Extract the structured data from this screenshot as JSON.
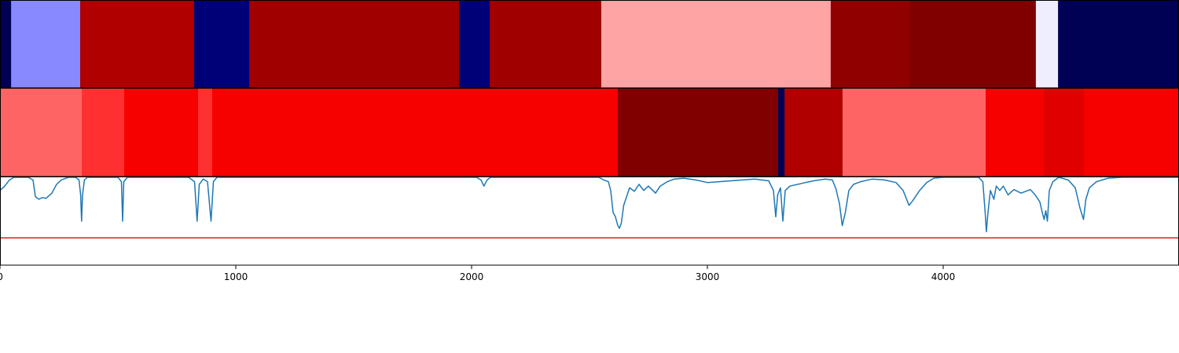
{
  "chart_data": {
    "type": "heatmap",
    "xlim": [
      0,
      5000
    ],
    "x_ticks": [
      {
        "value": 0,
        "label": "0"
      },
      {
        "value": 1000,
        "label": "1000"
      },
      {
        "value": 2000,
        "label": "2000"
      },
      {
        "value": 3000,
        "label": "3000"
      },
      {
        "value": 4000,
        "label": "4000"
      }
    ],
    "strip_top": {
      "segments": [
        {
          "start": 0,
          "end": 47,
          "color": "#000055"
        },
        {
          "start": 47,
          "end": 340,
          "color": "#8888ff"
        },
        {
          "start": 340,
          "end": 823,
          "color": "#b00000"
        },
        {
          "start": 823,
          "end": 1057,
          "color": "#000077"
        },
        {
          "start": 1057,
          "end": 1947,
          "color": "#a00000"
        },
        {
          "start": 1947,
          "end": 2077,
          "color": "#000077"
        },
        {
          "start": 2077,
          "end": 2550,
          "color": "#a00000"
        },
        {
          "start": 2550,
          "end": 3523,
          "color": "#ffa4a4"
        },
        {
          "start": 3523,
          "end": 3857,
          "color": "#900000"
        },
        {
          "start": 3857,
          "end": 4393,
          "color": "#800000"
        },
        {
          "start": 4393,
          "end": 4487,
          "color": "#eeeeff"
        },
        {
          "start": 4487,
          "end": 5000,
          "color": "#000055"
        }
      ]
    },
    "strip_mid": {
      "segments": [
        {
          "start": 0,
          "end": 347,
          "color": "#ff6464"
        },
        {
          "start": 347,
          "end": 527,
          "color": "#ff3030"
        },
        {
          "start": 527,
          "end": 840,
          "color": "#f70000"
        },
        {
          "start": 840,
          "end": 900,
          "color": "#ff3030"
        },
        {
          "start": 900,
          "end": 2620,
          "color": "#f70000"
        },
        {
          "start": 2620,
          "end": 3300,
          "color": "#800000"
        },
        {
          "start": 3300,
          "end": 3327,
          "color": "#000055"
        },
        {
          "start": 3327,
          "end": 3573,
          "color": "#b00000"
        },
        {
          "start": 3573,
          "end": 4180,
          "color": "#ff6464"
        },
        {
          "start": 4180,
          "end": 4427,
          "color": "#f70000"
        },
        {
          "start": 4427,
          "end": 4597,
          "color": "#e00000"
        },
        {
          "start": 4597,
          "end": 5000,
          "color": "#f70000"
        }
      ]
    },
    "line_panel": {
      "ylim": [
        0,
        1
      ],
      "line_color": "#1f77b4",
      "threshold": 0.31,
      "threshold_color": "#e41a1c",
      "series": [
        [
          0,
          0.85
        ],
        [
          20,
          0.9
        ],
        [
          40,
          0.97
        ],
        [
          60,
          1
        ],
        [
          120,
          1
        ],
        [
          140,
          0.97
        ],
        [
          150,
          0.78
        ],
        [
          165,
          0.75
        ],
        [
          180,
          0.77
        ],
        [
          195,
          0.76
        ],
        [
          220,
          0.82
        ],
        [
          240,
          0.92
        ],
        [
          260,
          0.97
        ],
        [
          290,
          1
        ],
        [
          320,
          1
        ],
        [
          335,
          0.97
        ],
        [
          342,
          0.8
        ],
        [
          346,
          0.5
        ],
        [
          350,
          0.8
        ],
        [
          358,
          0.97
        ],
        [
          370,
          1
        ],
        [
          500,
          1
        ],
        [
          515,
          0.95
        ],
        [
          520,
          0.5
        ],
        [
          525,
          0.95
        ],
        [
          540,
          1
        ],
        [
          800,
          1
        ],
        [
          825,
          0.95
        ],
        [
          836,
          0.5
        ],
        [
          845,
          0.92
        ],
        [
          862,
          0.98
        ],
        [
          880,
          0.95
        ],
        [
          895,
          0.5
        ],
        [
          905,
          0.95
        ],
        [
          920,
          1
        ],
        [
          2020,
          1
        ],
        [
          2040,
          0.97
        ],
        [
          2052,
          0.9
        ],
        [
          2066,
          0.97
        ],
        [
          2080,
          1
        ],
        [
          2540,
          1
        ],
        [
          2560,
          0.97
        ],
        [
          2580,
          0.95
        ],
        [
          2590,
          0.85
        ],
        [
          2600,
          0.6
        ],
        [
          2610,
          0.55
        ],
        [
          2620,
          0.45
        ],
        [
          2627,
          0.42
        ],
        [
          2635,
          0.48
        ],
        [
          2645,
          0.68
        ],
        [
          2660,
          0.8
        ],
        [
          2670,
          0.88
        ],
        [
          2690,
          0.84
        ],
        [
          2710,
          0.92
        ],
        [
          2730,
          0.85
        ],
        [
          2750,
          0.9
        ],
        [
          2780,
          0.82
        ],
        [
          2800,
          0.9
        ],
        [
          2830,
          0.95
        ],
        [
          2860,
          0.98
        ],
        [
          2900,
          0.99
        ],
        [
          2950,
          0.97
        ],
        [
          3000,
          0.94
        ],
        [
          3050,
          0.95
        ],
        [
          3100,
          0.96
        ],
        [
          3150,
          0.97
        ],
        [
          3200,
          0.98
        ],
        [
          3260,
          0.96
        ],
        [
          3280,
          0.85
        ],
        [
          3290,
          0.55
        ],
        [
          3298,
          0.8
        ],
        [
          3310,
          0.88
        ],
        [
          3320,
          0.5
        ],
        [
          3330,
          0.85
        ],
        [
          3350,
          0.9
        ],
        [
          3400,
          0.93
        ],
        [
          3450,
          0.96
        ],
        [
          3500,
          0.98
        ],
        [
          3530,
          0.97
        ],
        [
          3545,
          0.87
        ],
        [
          3560,
          0.7
        ],
        [
          3572,
          0.45
        ],
        [
          3585,
          0.6
        ],
        [
          3600,
          0.85
        ],
        [
          3620,
          0.92
        ],
        [
          3650,
          0.95
        ],
        [
          3700,
          0.98
        ],
        [
          3750,
          0.97
        ],
        [
          3800,
          0.94
        ],
        [
          3830,
          0.85
        ],
        [
          3855,
          0.68
        ],
        [
          3870,
          0.73
        ],
        [
          3900,
          0.85
        ],
        [
          3930,
          0.94
        ],
        [
          3960,
          0.99
        ],
        [
          4000,
          1
        ],
        [
          4150,
          1
        ],
        [
          4168,
          0.95
        ],
        [
          4178,
          0.6
        ],
        [
          4183,
          0.38
        ],
        [
          4190,
          0.6
        ],
        [
          4200,
          0.85
        ],
        [
          4215,
          0.75
        ],
        [
          4225,
          0.9
        ],
        [
          4240,
          0.85
        ],
        [
          4255,
          0.9
        ],
        [
          4275,
          0.8
        ],
        [
          4300,
          0.86
        ],
        [
          4330,
          0.82
        ],
        [
          4370,
          0.86
        ],
        [
          4390,
          0.8
        ],
        [
          4410,
          0.72
        ],
        [
          4420,
          0.6
        ],
        [
          4428,
          0.52
        ],
        [
          4435,
          0.62
        ],
        [
          4442,
          0.5
        ],
        [
          4450,
          0.85
        ],
        [
          4465,
          0.95
        ],
        [
          4490,
          1
        ],
        [
          4530,
          0.97
        ],
        [
          4560,
          0.88
        ],
        [
          4580,
          0.65
        ],
        [
          4595,
          0.52
        ],
        [
          4605,
          0.75
        ],
        [
          4620,
          0.88
        ],
        [
          4650,
          0.95
        ],
        [
          4700,
          0.99
        ],
        [
          4760,
          1
        ],
        [
          5000,
          1
        ]
      ]
    }
  }
}
